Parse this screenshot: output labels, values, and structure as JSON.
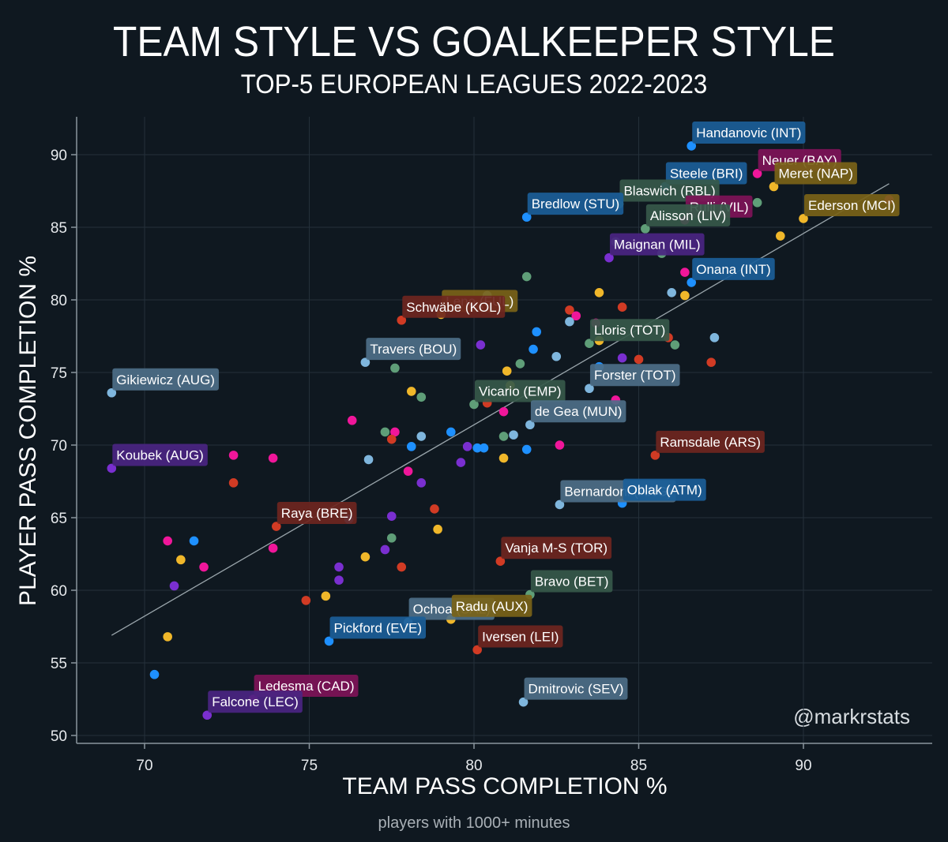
{
  "header": {
    "title": "TEAM STYLE VS GOALKEEPER STYLE",
    "subtitle": "TOP-5 EUROPEAN LEAGUES 2022-2023"
  },
  "footer": {
    "caption": "players with 1000+ minutes",
    "watermark": "@markrstats"
  },
  "colors": {
    "background": "#0f1820",
    "grid": "#24303a",
    "axis": "#8a959d",
    "trendline": "#9aa5ab",
    "palette": {
      "blue": "#1e90ff",
      "lightblue": "#7fb6dd",
      "green": "#5f9e78",
      "yellow": "#f0b72a",
      "red": "#d13b24",
      "pink": "#f0169a",
      "purple": "#7a2fd0"
    },
    "label_bg": {
      "blue": "#1b5e98",
      "lightblue": "#4d6f88",
      "green": "#36594a",
      "yellow": "#7a6318",
      "red": "#6e2620",
      "pink": "#7e1458",
      "purple": "#4a2582"
    }
  },
  "chart_data": {
    "type": "scatter",
    "title": "TEAM STYLE VS GOALKEEPER STYLE",
    "subtitle": "TOP-5 EUROPEAN LEAGUES 2022-2023",
    "xlabel": "TEAM PASS COMPLETION %",
    "ylabel": "PLAYER PASS COMPLETION %",
    "xlim": [
      67.8,
      93.8
    ],
    "ylim": [
      49.5,
      92.6
    ],
    "xticks": [
      70,
      75,
      80,
      85,
      90
    ],
    "yticks": [
      50,
      55,
      60,
      65,
      70,
      75,
      80,
      85,
      90
    ],
    "grid": true,
    "trendline": {
      "x": [
        69.0,
        92.6
      ],
      "y": [
        56.9,
        88.0
      ]
    },
    "labeled_points": [
      {
        "label": "Handanovic (INT)",
        "x": 86.6,
        "y": 90.6,
        "color": "blue"
      },
      {
        "label": "Neuer (BAY)",
        "x": 88.6,
        "y": 88.7,
        "color": "pink"
      },
      {
        "label": "Steele (BRI)",
        "x": 85.8,
        "y": 87.8,
        "color": "blue"
      },
      {
        "label": "Meret (NAP)",
        "x": 89.1,
        "y": 87.8,
        "color": "yellow"
      },
      {
        "label": "Blaswich (RBL)",
        "x": 84.4,
        "y": 86.6,
        "color": "green"
      },
      {
        "label": "Rulli (VIL)",
        "x": 86.4,
        "y": 85.5,
        "color": "pink"
      },
      {
        "label": "Ederson (MCI)",
        "x": 90.0,
        "y": 85.6,
        "color": "yellow"
      },
      {
        "label": "Bredlow (STU)",
        "x": 81.6,
        "y": 85.7,
        "color": "blue"
      },
      {
        "label": "Alisson (LIV)",
        "x": 85.2,
        "y": 84.9,
        "color": "green"
      },
      {
        "label": "Maignan (MIL)",
        "x": 84.1,
        "y": 82.9,
        "color": "purple"
      },
      {
        "label": "Onana (INT)",
        "x": 86.6,
        "y": 81.2,
        "color": "blue"
      },
      {
        "label": "Leno (FUL)",
        "x": 79.0,
        "y": 79.0,
        "color": "yellow"
      },
      {
        "label": "Schwäbe (KOL)",
        "x": 77.8,
        "y": 78.6,
        "color": "red"
      },
      {
        "label": "Lloris (TOT)",
        "x": 83.5,
        "y": 77.0,
        "color": "green"
      },
      {
        "label": "Travers (BOU)",
        "x": 76.7,
        "y": 75.7,
        "color": "lightblue"
      },
      {
        "label": "Gikiewicz (AUG)",
        "x": 69.0,
        "y": 73.6,
        "color": "lightblue"
      },
      {
        "label": "Forster (TOT)",
        "x": 83.5,
        "y": 73.9,
        "color": "lightblue"
      },
      {
        "label": "Vicario (EMP)",
        "x": 80.0,
        "y": 72.8,
        "color": "green"
      },
      {
        "label": "de Gea (MUN)",
        "x": 81.7,
        "y": 71.4,
        "color": "lightblue"
      },
      {
        "label": "Ramsdale (ARS)",
        "x": 85.5,
        "y": 69.3,
        "color": "red"
      },
      {
        "label": "Koubek (AUG)",
        "x": 69.0,
        "y": 68.4,
        "color": "purple"
      },
      {
        "label": "Bernardoni (ANG)",
        "x": 82.6,
        "y": 65.9,
        "color": "lightblue"
      },
      {
        "label": "Oblak (ATM)",
        "x": 84.5,
        "y": 66.0,
        "color": "blue"
      },
      {
        "label": "Raya (BRE)",
        "x": 74.0,
        "y": 64.4,
        "color": "red"
      },
      {
        "label": "Vanja M-S (TOR)",
        "x": 80.8,
        "y": 62.0,
        "color": "red"
      },
      {
        "label": "Bravo (BET)",
        "x": 81.7,
        "y": 59.7,
        "color": "green"
      },
      {
        "label": "Ochoa (SAL)",
        "x": 78.0,
        "y": 57.8,
        "color": "lightblue"
      },
      {
        "label": "Radu (AUX)",
        "x": 79.3,
        "y": 58.0,
        "color": "yellow"
      },
      {
        "label": "Pickford (EVE)",
        "x": 75.6,
        "y": 56.5,
        "color": "blue"
      },
      {
        "label": "Iversen (LEI)",
        "x": 80.1,
        "y": 55.9,
        "color": "red"
      },
      {
        "label": "Ledesma (CAD)",
        "x": 73.3,
        "y": 52.5,
        "color": "pink"
      },
      {
        "label": "Dmitrovic (SEV)",
        "x": 81.5,
        "y": 52.3,
        "color": "lightblue"
      },
      {
        "label": "Falcone (LEC)",
        "x": 71.9,
        "y": 51.4,
        "color": "purple"
      }
    ],
    "unlabeled_points": [
      {
        "x": 92.6,
        "y": 86.9,
        "color": "pink"
      },
      {
        "x": 88.6,
        "y": 86.7,
        "color": "green"
      },
      {
        "x": 89.3,
        "y": 84.4,
        "color": "yellow"
      },
      {
        "x": 84.3,
        "y": 84.0,
        "color": "green"
      },
      {
        "x": 85.7,
        "y": 83.2,
        "color": "green"
      },
      {
        "x": 86.4,
        "y": 81.9,
        "color": "pink"
      },
      {
        "x": 86.0,
        "y": 80.5,
        "color": "lightblue"
      },
      {
        "x": 86.4,
        "y": 80.3,
        "color": "yellow"
      },
      {
        "x": 81.6,
        "y": 81.6,
        "color": "green"
      },
      {
        "x": 83.8,
        "y": 80.5,
        "color": "yellow"
      },
      {
        "x": 80.4,
        "y": 80.3,
        "color": "lightblue"
      },
      {
        "x": 80.5,
        "y": 79.4,
        "color": "green"
      },
      {
        "x": 82.9,
        "y": 79.3,
        "color": "red"
      },
      {
        "x": 84.5,
        "y": 79.5,
        "color": "red"
      },
      {
        "x": 83.1,
        "y": 78.9,
        "color": "pink"
      },
      {
        "x": 82.9,
        "y": 78.5,
        "color": "lightblue"
      },
      {
        "x": 83.7,
        "y": 78.4,
        "color": "pink"
      },
      {
        "x": 81.9,
        "y": 77.8,
        "color": "blue"
      },
      {
        "x": 85.9,
        "y": 77.4,
        "color": "red"
      },
      {
        "x": 87.3,
        "y": 77.4,
        "color": "lightblue"
      },
      {
        "x": 83.8,
        "y": 77.2,
        "color": "yellow"
      },
      {
        "x": 86.1,
        "y": 76.9,
        "color": "green"
      },
      {
        "x": 80.2,
        "y": 76.9,
        "color": "purple"
      },
      {
        "x": 81.8,
        "y": 76.6,
        "color": "blue"
      },
      {
        "x": 82.5,
        "y": 76.1,
        "color": "lightblue"
      },
      {
        "x": 84.5,
        "y": 76.0,
        "color": "purple"
      },
      {
        "x": 85.0,
        "y": 75.9,
        "color": "red"
      },
      {
        "x": 87.2,
        "y": 75.7,
        "color": "red"
      },
      {
        "x": 81.4,
        "y": 75.6,
        "color": "green"
      },
      {
        "x": 83.8,
        "y": 75.4,
        "color": "blue"
      },
      {
        "x": 77.6,
        "y": 75.3,
        "color": "green"
      },
      {
        "x": 81.0,
        "y": 75.1,
        "color": "yellow"
      },
      {
        "x": 81.1,
        "y": 74.1,
        "color": "yellow"
      },
      {
        "x": 78.1,
        "y": 73.7,
        "color": "yellow"
      },
      {
        "x": 78.4,
        "y": 73.3,
        "color": "green"
      },
      {
        "x": 84.3,
        "y": 73.1,
        "color": "pink"
      },
      {
        "x": 80.4,
        "y": 72.9,
        "color": "red"
      },
      {
        "x": 80.9,
        "y": 72.3,
        "color": "pink"
      },
      {
        "x": 76.3,
        "y": 71.7,
        "color": "pink"
      },
      {
        "x": 77.3,
        "y": 70.9,
        "color": "green"
      },
      {
        "x": 77.6,
        "y": 70.9,
        "color": "pink"
      },
      {
        "x": 77.5,
        "y": 70.4,
        "color": "red"
      },
      {
        "x": 78.4,
        "y": 70.6,
        "color": "lightblue"
      },
      {
        "x": 79.3,
        "y": 70.9,
        "color": "blue"
      },
      {
        "x": 80.9,
        "y": 70.6,
        "color": "green"
      },
      {
        "x": 81.2,
        "y": 70.7,
        "color": "lightblue"
      },
      {
        "x": 82.6,
        "y": 70.0,
        "color": "pink"
      },
      {
        "x": 78.1,
        "y": 69.9,
        "color": "blue"
      },
      {
        "x": 79.8,
        "y": 69.9,
        "color": "purple"
      },
      {
        "x": 80.1,
        "y": 69.8,
        "color": "blue"
      },
      {
        "x": 80.3,
        "y": 69.8,
        "color": "blue"
      },
      {
        "x": 81.6,
        "y": 69.7,
        "color": "blue"
      },
      {
        "x": 76.8,
        "y": 69.0,
        "color": "lightblue"
      },
      {
        "x": 80.9,
        "y": 69.1,
        "color": "yellow"
      },
      {
        "x": 72.7,
        "y": 69.3,
        "color": "pink"
      },
      {
        "x": 73.9,
        "y": 69.1,
        "color": "pink"
      },
      {
        "x": 79.6,
        "y": 68.8,
        "color": "purple"
      },
      {
        "x": 78.0,
        "y": 68.2,
        "color": "pink"
      },
      {
        "x": 72.7,
        "y": 67.4,
        "color": "red"
      },
      {
        "x": 78.4,
        "y": 67.4,
        "color": "purple"
      },
      {
        "x": 78.8,
        "y": 65.6,
        "color": "red"
      },
      {
        "x": 77.5,
        "y": 65.1,
        "color": "purple"
      },
      {
        "x": 76.2,
        "y": 64.9,
        "color": "blue"
      },
      {
        "x": 78.9,
        "y": 64.2,
        "color": "yellow"
      },
      {
        "x": 70.7,
        "y": 63.4,
        "color": "pink"
      },
      {
        "x": 71.5,
        "y": 63.4,
        "color": "blue"
      },
      {
        "x": 73.9,
        "y": 62.9,
        "color": "pink"
      },
      {
        "x": 77.5,
        "y": 63.6,
        "color": "green"
      },
      {
        "x": 77.3,
        "y": 62.8,
        "color": "purple"
      },
      {
        "x": 71.1,
        "y": 62.1,
        "color": "yellow"
      },
      {
        "x": 76.7,
        "y": 62.3,
        "color": "yellow"
      },
      {
        "x": 71.8,
        "y": 61.6,
        "color": "pink"
      },
      {
        "x": 75.9,
        "y": 61.6,
        "color": "purple"
      },
      {
        "x": 77.8,
        "y": 61.6,
        "color": "red"
      },
      {
        "x": 75.9,
        "y": 60.7,
        "color": "purple"
      },
      {
        "x": 70.9,
        "y": 60.3,
        "color": "purple"
      },
      {
        "x": 75.5,
        "y": 59.6,
        "color": "yellow"
      },
      {
        "x": 74.9,
        "y": 59.3,
        "color": "red"
      },
      {
        "x": 70.7,
        "y": 56.8,
        "color": "yellow"
      },
      {
        "x": 70.3,
        "y": 54.2,
        "color": "blue"
      }
    ]
  }
}
